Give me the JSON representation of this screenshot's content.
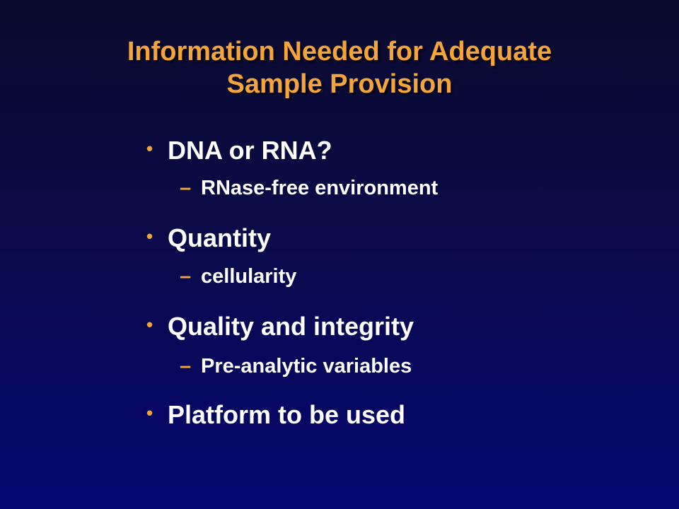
{
  "title": {
    "line1": "Information Needed for Adequate",
    "line2": "Sample Provision"
  },
  "bullets": [
    {
      "marker": "•",
      "text": "DNA or RNA?",
      "sub": {
        "marker": "–",
        "text": "RNase-free environment"
      }
    },
    {
      "marker": "•",
      "text": "Quantity",
      "sub": {
        "marker": "–",
        "text": "cellularity"
      }
    },
    {
      "marker": "•",
      "text": "Quality and integrity",
      "sub": {
        "marker": "–",
        "text": "Pre-analytic variables"
      }
    },
    {
      "marker": "•",
      "text": "Platform to be used"
    }
  ],
  "colors": {
    "title": "#f4a53a",
    "text": "#ffffff",
    "background_top": "#0b0b2e",
    "background_bottom": "#040570"
  }
}
